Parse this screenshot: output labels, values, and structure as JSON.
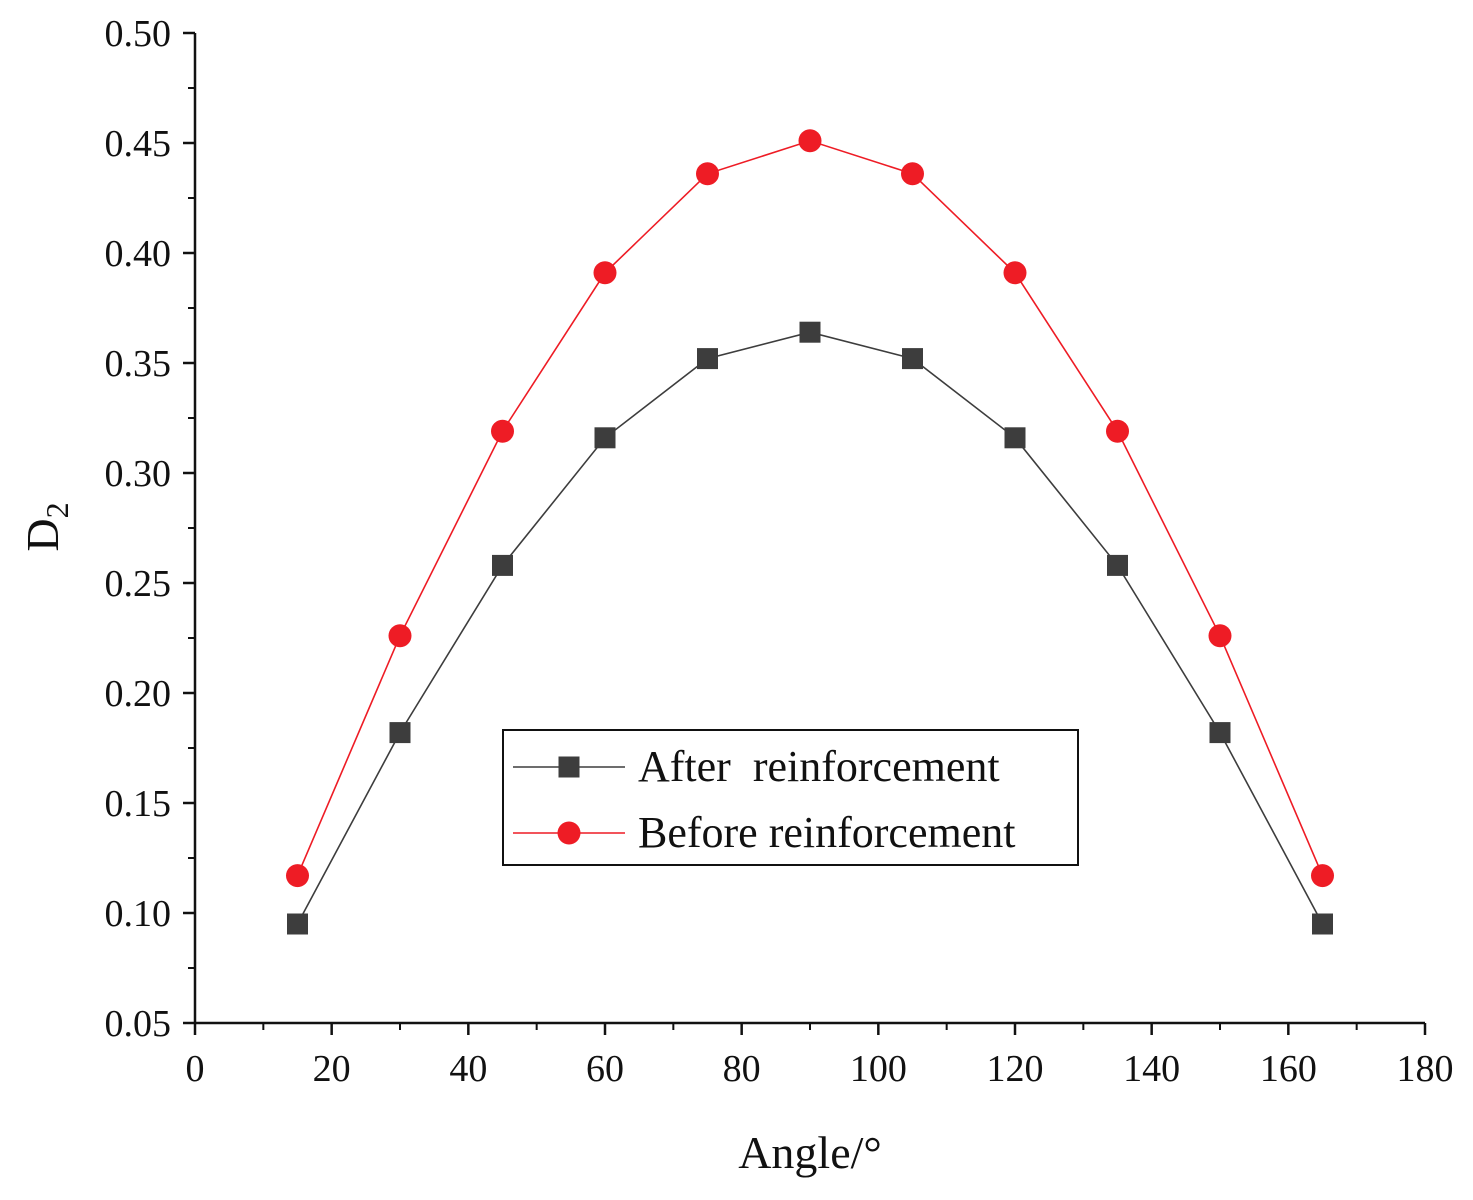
{
  "chart_data": {
    "type": "line",
    "xlabel": "Angle/°",
    "ylabel_main": "D",
    "ylabel_sub": "2",
    "xlim": [
      0,
      180
    ],
    "ylim": [
      0.05,
      0.5
    ],
    "x_ticks": [
      0,
      20,
      40,
      60,
      80,
      100,
      120,
      140,
      160,
      180
    ],
    "x_tick_labels": [
      "0",
      "20",
      "40",
      "60",
      "80",
      "100",
      "120",
      "140",
      "160",
      "180"
    ],
    "y_ticks": [
      0.05,
      0.1,
      0.15,
      0.2,
      0.25,
      0.3,
      0.35,
      0.4,
      0.45,
      0.5
    ],
    "y_tick_labels": [
      "0.05",
      "0.10",
      "0.15",
      "0.20",
      "0.25",
      "0.30",
      "0.35",
      "0.40",
      "0.45",
      "0.50"
    ],
    "x": [
      15,
      30,
      45,
      60,
      75,
      90,
      105,
      120,
      135,
      150,
      165
    ],
    "series": [
      {
        "name": "After reinforcement",
        "marker": "square",
        "color": "#3d3d3d",
        "values": [
          0.095,
          0.182,
          0.258,
          0.316,
          0.352,
          0.364,
          0.352,
          0.316,
          0.258,
          0.182,
          0.095
        ]
      },
      {
        "name": "Before reinforcement",
        "marker": "circle",
        "color": "#ee1c25",
        "values": [
          0.117,
          0.226,
          0.319,
          0.391,
          0.436,
          0.451,
          0.436,
          0.391,
          0.319,
          0.226,
          0.117
        ]
      }
    ],
    "legend": {
      "placement": "center-bottom",
      "entries": [
        "After  reinforcement",
        "Before reinforcement"
      ]
    },
    "grid": false
  }
}
